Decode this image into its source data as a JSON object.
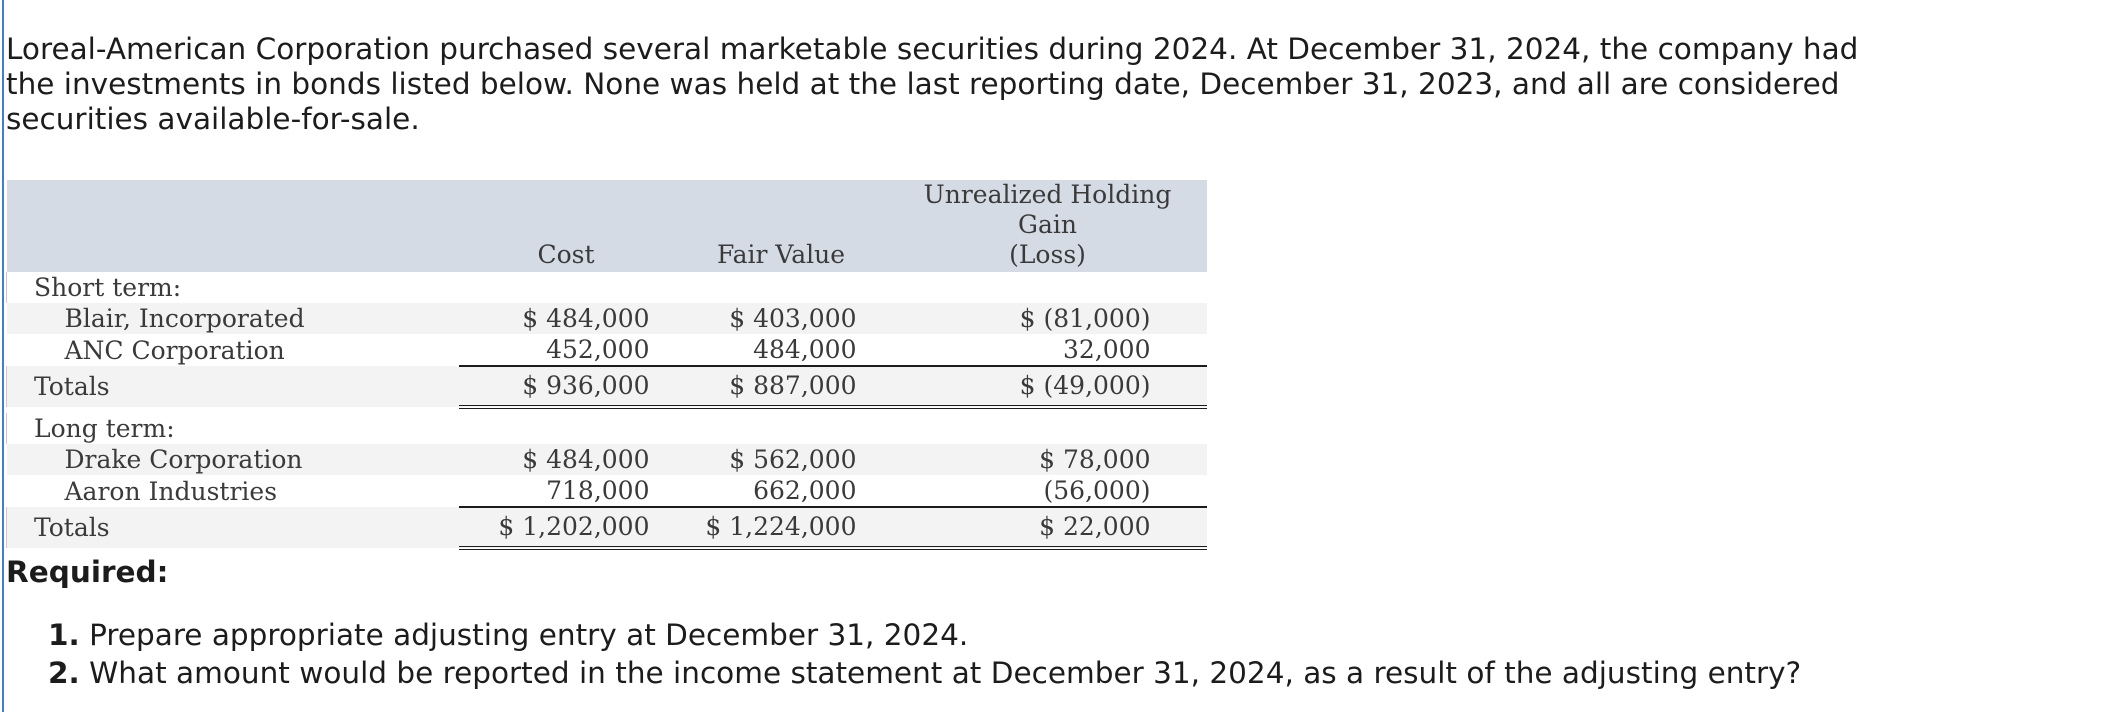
{
  "intro_text": "Loreal-American Corporation purchased several marketable securities during 2024. At December 31, 2024, the company had the investments in bonds listed below. None was held at the last reporting date, December 31, 2023, and all are considered securities available-for-sale.",
  "table": {
    "headers": {
      "cost": "Cost",
      "fair_value": "Fair Value",
      "gain_line1": "Unrealized Holding Gain",
      "gain_line2": "(Loss)"
    },
    "short_term": {
      "label": "Short term:",
      "rows": [
        {
          "name": "Blair, Incorporated",
          "cost": "$ 484,000",
          "fair_value": "$ 403,000",
          "gain": "$ (81,000)"
        },
        {
          "name": "ANC Corporation",
          "cost": "452,000",
          "fair_value": "484,000",
          "gain": "32,000"
        }
      ],
      "totals": {
        "label": "Totals",
        "cost": "$ 936,000",
        "fair_value": "$ 887,000",
        "gain": "$ (49,000)"
      }
    },
    "long_term": {
      "label": "Long term:",
      "rows": [
        {
          "name": "Drake Corporation",
          "cost": "$ 484,000",
          "fair_value": "$ 562,000",
          "gain": "$ 78,000"
        },
        {
          "name": "Aaron Industries",
          "cost": "718,000",
          "fair_value": "662,000",
          "gain": "(56,000)"
        }
      ],
      "totals": {
        "label": "Totals",
        "cost": "$ 1,202,000",
        "fair_value": "$ 1,224,000",
        "gain": "$ 22,000"
      }
    }
  },
  "required": {
    "title": "Required:",
    "items": [
      {
        "num": "1.",
        "text": "Prepare appropriate adjusting entry at December 31, 2024."
      },
      {
        "num": "2.",
        "text": "What amount would be reported in the income statement at December 31, 2024, as a result of the adjusting entry?"
      }
    ]
  }
}
